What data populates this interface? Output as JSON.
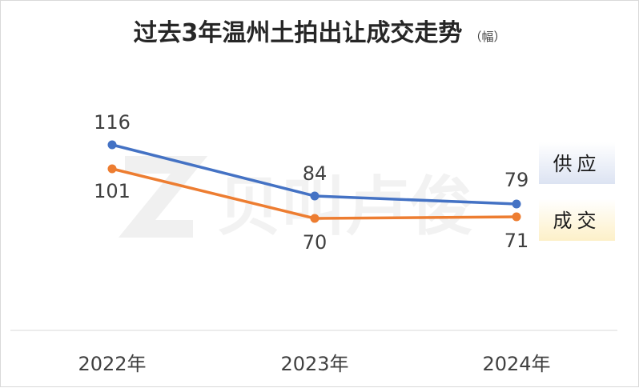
{
  "chart_data": {
    "type": "line",
    "title": "过去3年温州土拍出让成交走势",
    "title_unit": "（幅）",
    "categories": [
      "2022年",
      "2023年",
      "2024年"
    ],
    "series": [
      {
        "name": "供应",
        "values": [
          116,
          84,
          79
        ],
        "color": "#4472c4",
        "legend_bg": "#dce3f2"
      },
      {
        "name": "成交",
        "values": [
          101,
          70,
          71
        ],
        "color": "#ed7d31",
        "legend_bg": "#fdf0c8"
      }
    ],
    "ylim": [
      0,
      170
    ],
    "grid": false,
    "legend": "right, at line ends",
    "watermark": "贝叫卢俊"
  }
}
